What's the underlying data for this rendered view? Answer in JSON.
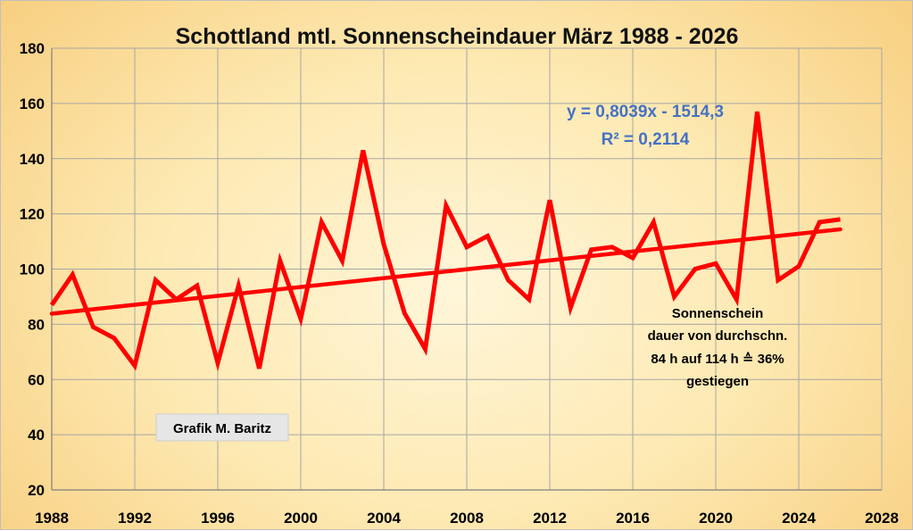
{
  "chart_data": {
    "type": "line",
    "title": "Schottland mtl. Sonnenscheindauer März 1988 - 2026",
    "xlabel": "",
    "ylabel": "",
    "xlim": [
      1988,
      2028
    ],
    "ylim": [
      20,
      180
    ],
    "x_ticks": [
      1988,
      1992,
      1996,
      2000,
      2004,
      2008,
      2012,
      2016,
      2020,
      2024,
      2028
    ],
    "y_ticks": [
      20,
      40,
      60,
      80,
      100,
      120,
      140,
      160,
      180
    ],
    "grid": true,
    "legend": "none",
    "x": [
      1988,
      1989,
      1990,
      1991,
      1992,
      1993,
      1994,
      1995,
      1996,
      1997,
      1998,
      1999,
      2000,
      2001,
      2002,
      2003,
      2004,
      2005,
      2006,
      2007,
      2008,
      2009,
      2010,
      2011,
      2012,
      2013,
      2014,
      2015,
      2016,
      2017,
      2018,
      2019,
      2020,
      2021,
      2022,
      2023,
      2024,
      2025,
      2026
    ],
    "series": [
      {
        "values": [
          87,
          98,
          79,
          75,
          65,
          96,
          89,
          94,
          66,
          94,
          64,
          103,
          82,
          117,
          103,
          143,
          109,
          84,
          71,
          123,
          108,
          112,
          96,
          89,
          125,
          86,
          107,
          108,
          104,
          117,
          90,
          100,
          102,
          89,
          157,
          96,
          101,
          117,
          118
        ],
        "color": "#ff0000"
      }
    ],
    "trendline": {
      "slope": 0.8039,
      "intercept": -1514.3,
      "x_range": [
        1988,
        2026
      ],
      "color": "#ff0000"
    },
    "annotations": {
      "equation": "y = 0,8039x - 1514,3",
      "r_squared": "R² = 0,2114",
      "note_lines": [
        "Sonnenschein",
        "dauer von durchschn.",
        "84 h auf 114 h ≙ 36%",
        "gestiegen"
      ],
      "credit": "Grafik M. Baritz"
    }
  }
}
